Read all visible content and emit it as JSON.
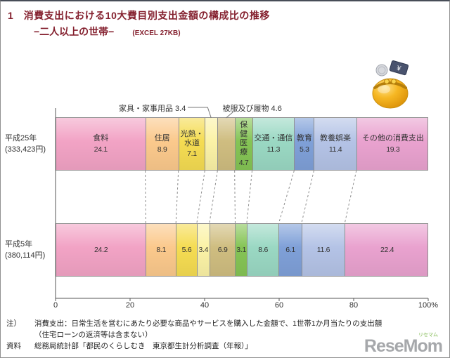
{
  "header": {
    "title_line1": "1　消費支出における10大費目別支出金額の構成比の推移",
    "title_line2": "−二人以上の世帯−",
    "excel_label": "(EXCEL 27KB)"
  },
  "chart_data": {
    "type": "bar",
    "stacked": true,
    "orientation": "horizontal",
    "unit": "%",
    "xlim": [
      0,
      100
    ],
    "grid": false,
    "categories": [
      "食料",
      "住居",
      "光熱・水道",
      "家具・家事用品",
      "被服及び履物",
      "保健医療",
      "交通・通信",
      "教育",
      "教養娯楽",
      "その他の消費支出"
    ],
    "colors": [
      "#f2a3c5",
      "#fbc98c",
      "#f5dc52",
      "#fbf2a6",
      "#cfbd80",
      "#85c455",
      "#9ad8c3",
      "#7fa0d8",
      "#b4c3e6",
      "#e9a2cf"
    ],
    "series": [
      {
        "name": "平成25年",
        "sub": "(333,423円)",
        "values": [
          24.1,
          8.9,
          7.1,
          3.4,
          4.6,
          4.7,
          11.3,
          5.3,
          11.4,
          19.3
        ]
      },
      {
        "name": "平成5年",
        "sub": "(380,114円)",
        "values": [
          24.2,
          8.1,
          5.6,
          3.4,
          6.9,
          3.1,
          8.6,
          6.1,
          11.6,
          22.4
        ]
      }
    ],
    "callouts": [
      {
        "category_index": 3
      },
      {
        "category_index": 4
      }
    ],
    "x_ticks": [
      {
        "value": 0,
        "label": "0"
      },
      {
        "value": 20,
        "label": "20"
      },
      {
        "value": 40,
        "label": "40"
      },
      {
        "value": 60,
        "label": "60"
      },
      {
        "value": 80,
        "label": "80"
      },
      {
        "value": 100,
        "label": "100%"
      }
    ]
  },
  "notes": {
    "note_label": "注）",
    "note_line1": "消費支出：日常生活を営むにあたり必要な商品やサービスを購入した金額で、1世帯1か月当たりの支出額",
    "note_line2": "（住宅ローンの返済等は含まない）",
    "source_label": "資料",
    "source_text": "総務局統計部「都民のくらしむき　東京都生計分析調査（年報）」"
  },
  "logo": {
    "text": "ReseMom",
    "kana": "リセマム"
  }
}
